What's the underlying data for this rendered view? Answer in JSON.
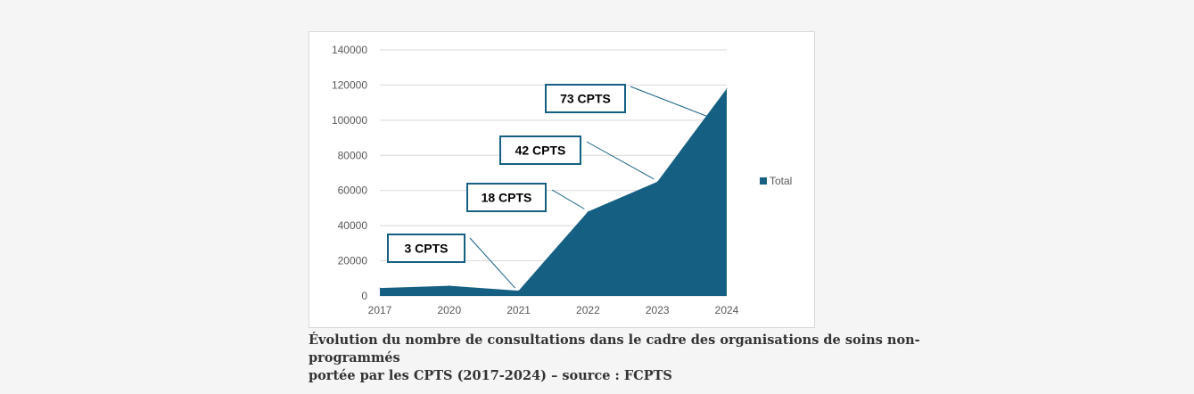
{
  "chart_data": {
    "type": "area",
    "categories": [
      "2017",
      "2020",
      "2021",
      "2022",
      "2023",
      "2024"
    ],
    "series": [
      {
        "name": "Total",
        "values": [
          4500,
          5800,
          3000,
          48000,
          65000,
          118000
        ]
      }
    ],
    "yticks": [
      "0",
      "20000",
      "40000",
      "60000",
      "80000",
      "100000",
      "120000",
      "140000"
    ],
    "ylim": [
      0,
      140000
    ],
    "grid": true,
    "legend": "right",
    "annotations": [
      {
        "text": "3 CPTS",
        "category": "2021"
      },
      {
        "text": "18 CPTS",
        "category": "2022"
      },
      {
        "text": "42 CPTS",
        "category": "2023"
      },
      {
        "text": "73 CPTS",
        "category": "2024"
      }
    ],
    "colors": {
      "area": "#156082",
      "grid": "#d9d9d9",
      "label_border": "#156082"
    }
  },
  "caption": {
    "line1": "Évolution du nombre de consultations dans le cadre des organisations de soins non-programmés",
    "line2": "portée par les CPTS (2017-2024) – source : FCPTS"
  }
}
